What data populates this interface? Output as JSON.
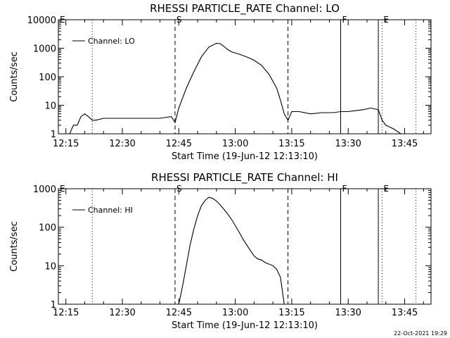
{
  "timestamp": "22-Oct-2021 19:29",
  "chart_data": [
    {
      "type": "line",
      "title": "RHESSI PARTICLE_RATE Channel: LO",
      "xlabel": "Start Time (19-Jun-12 12:13:10)",
      "ylabel": "Counts/sec",
      "y_scale": "log",
      "xlim": [
        "12:13",
        "13:52"
      ],
      "ylim": [
        1,
        10000
      ],
      "x_ticks": [
        "12:15",
        "12:30",
        "12:45",
        "13:00",
        "13:15",
        "13:30",
        "13:45"
      ],
      "y_ticks": [
        "1",
        "10",
        "100",
        "1000",
        "10000"
      ],
      "legend": {
        "position": "top-left",
        "entries": [
          "Channel: LO"
        ]
      },
      "markers": [
        {
          "label": "E",
          "time": "12:13",
          "style": "dotted"
        },
        {
          "time": "12:22",
          "style": "dotted"
        },
        {
          "label": "S",
          "time": "12:44",
          "style": "dashed"
        },
        {
          "time": "13:14",
          "style": "dashed"
        },
        {
          "label": "F",
          "time": "13:28",
          "style": "solid"
        },
        {
          "time": "13:38",
          "style": "solid"
        },
        {
          "label": "E",
          "time": "13:39",
          "style": "dotted"
        },
        {
          "time": "13:48",
          "style": "dotted"
        }
      ],
      "series": [
        {
          "name": "Channel: LO",
          "x": [
            "12:13",
            "12:15",
            "12:16",
            "12:17",
            "12:18",
            "12:19",
            "12:20",
            "12:21",
            "12:22",
            "12:23",
            "12:25",
            "12:28",
            "12:31",
            "12:34",
            "12:37",
            "12:40",
            "12:43",
            "12:44",
            "12:45",
            "12:47",
            "12:49",
            "12:51",
            "12:53",
            "12:55",
            "12:56",
            "12:57",
            "12:58",
            "12:59",
            "13:01",
            "13:03",
            "13:05",
            "13:07",
            "13:09",
            "13:11",
            "13:12",
            "13:13",
            "13:14",
            "13:15",
            "13:17",
            "13:20",
            "13:23",
            "13:26",
            "13:28",
            "13:30",
            "13:32",
            "13:34",
            "13:36",
            "13:38",
            "13:39",
            "13:40",
            "13:42",
            "13:44",
            "13:46",
            "13:48"
          ],
          "y": [
            1,
            1,
            1,
            2,
            2,
            4,
            5,
            4,
            3,
            3,
            3.5,
            3.5,
            3.5,
            3.5,
            3.5,
            3.5,
            4,
            2.5,
            8,
            40,
            150,
            500,
            1100,
            1500,
            1450,
            1150,
            900,
            750,
            620,
            500,
            380,
            250,
            120,
            40,
            15,
            5,
            3,
            6,
            6,
            5,
            5.5,
            5.5,
            6,
            6,
            6.5,
            7,
            8,
            7,
            3,
            2,
            1.5,
            1,
            1,
            1
          ]
        }
      ]
    },
    {
      "type": "line",
      "title": "RHESSI PARTICLE_RATE Channel: HI",
      "xlabel": "Start Time (19-Jun-12 12:13:10)",
      "ylabel": "Counts/sec",
      "y_scale": "log",
      "xlim": [
        "12:13",
        "13:52"
      ],
      "ylim": [
        1,
        1000
      ],
      "x_ticks": [
        "12:15",
        "12:30",
        "12:45",
        "13:00",
        "13:15",
        "13:30",
        "13:45"
      ],
      "y_ticks": [
        "1",
        "10",
        "100",
        "1000"
      ],
      "legend": {
        "position": "top-left",
        "entries": [
          "Channel: HI"
        ]
      },
      "markers": [
        {
          "label": "E",
          "time": "12:13",
          "style": "dotted"
        },
        {
          "time": "12:22",
          "style": "dotted"
        },
        {
          "label": "S",
          "time": "12:44",
          "style": "dashed"
        },
        {
          "time": "13:14",
          "style": "dashed"
        },
        {
          "label": "F",
          "time": "13:28",
          "style": "solid"
        },
        {
          "time": "13:38",
          "style": "solid"
        },
        {
          "label": "E",
          "time": "13:39",
          "style": "dotted"
        },
        {
          "time": "13:48",
          "style": "dotted"
        }
      ],
      "series": [
        {
          "name": "Channel: HI",
          "x": [
            "12:45",
            "12:46",
            "12:47",
            "12:48",
            "12:49",
            "12:50",
            "12:51",
            "12:52",
            "12:53",
            "12:54",
            "12:55",
            "12:56",
            "12:57",
            "12:58",
            "12:59",
            "13:00",
            "13:01",
            "13:02",
            "13:03",
            "13:04",
            "13:05",
            "13:06",
            "13:07",
            "13:08",
            "13:09",
            "13:10",
            "13:11",
            "13:12",
            "13:13"
          ],
          "y": [
            1,
            3,
            10,
            35,
            90,
            200,
            360,
            500,
            600,
            560,
            480,
            380,
            290,
            220,
            160,
            110,
            75,
            50,
            35,
            25,
            18,
            15,
            14,
            12,
            11,
            10,
            8,
            5,
            1
          ]
        }
      ]
    }
  ]
}
